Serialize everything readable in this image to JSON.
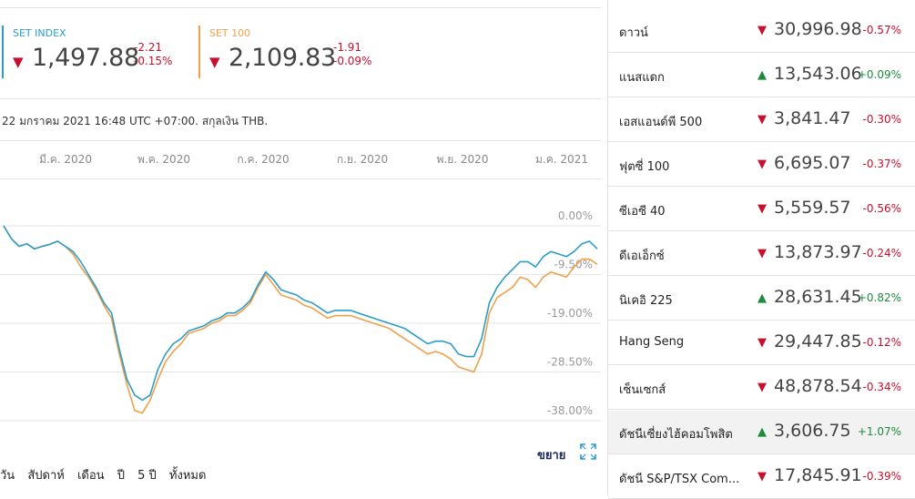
{
  "quotes": [
    {
      "name": "SET INDEX",
      "price": "1,497.88",
      "change": "-2.21",
      "change_pct": "-0.15%",
      "color": "#2a9dc7",
      "direction": "down"
    },
    {
      "name": "SET 100",
      "price": "2,109.83",
      "change": "-1.91",
      "change_pct": "-0.09%",
      "color": "#f0a04b",
      "direction": "down"
    }
  ],
  "timestamp": "22 มกราคม 2021 16:48 UTC +07:00. สกุลเงิน THB.",
  "expand_label": "ขยาย",
  "ranges": [
    "วัน",
    "สัปดาห์",
    "เดือน",
    "ปี",
    "5 ปี",
    "ทั้งหมด"
  ],
  "chart_data": {
    "type": "line",
    "x_ticks": [
      "มี.ค. 2020",
      "พ.ค. 2020",
      "ก.ค. 2020",
      "ก.ย. 2020",
      "พ.ย. 2020",
      "ม.ค. 2021"
    ],
    "y_ticks": [
      "0.00%",
      "-9.50%",
      "-19.00%",
      "-28.50%",
      "-38.00%"
    ],
    "ylim": [
      -38,
      0
    ],
    "y_unit": "% change",
    "grid": true,
    "series": [
      {
        "name": "SET INDEX",
        "color": "#2a9dc7",
        "values": [
          0,
          -2.5,
          -4,
          -3.5,
          -4.5,
          -4,
          -3.6,
          -3,
          -4,
          -5,
          -7,
          -9.5,
          -12,
          -15,
          -17,
          -24,
          -30,
          -33,
          -34,
          -33,
          -28,
          -25,
          -23,
          -22,
          -20.5,
          -20,
          -19.5,
          -18.5,
          -18,
          -17,
          -17,
          -16,
          -14.5,
          -11.5,
          -9,
          -10.5,
          -12.5,
          -13,
          -13.5,
          -14.5,
          -15,
          -16,
          -17,
          -16.5,
          -16.5,
          -16.5,
          -17,
          -17.5,
          -18,
          -18.5,
          -19,
          -19.5,
          -20,
          -21,
          -22,
          -23,
          -22.5,
          -22.5,
          -23,
          -25,
          -25.5,
          -25.5,
          -22,
          -15,
          -12,
          -10,
          -8.5,
          -7,
          -7,
          -8,
          -6,
          -5,
          -5.5,
          -6,
          -5,
          -3.5,
          -3,
          -4.5
        ]
      },
      {
        "name": "SET 100",
        "color": "#f0a04b",
        "values": [
          0,
          -2.5,
          -4,
          -3.5,
          -4.5,
          -4,
          -3.6,
          -3,
          -4,
          -5.5,
          -8,
          -10,
          -12.5,
          -15.5,
          -18,
          -25,
          -31,
          -36,
          -36.5,
          -34,
          -30,
          -26.5,
          -24.5,
          -23,
          -21,
          -20.5,
          -20,
          -19,
          -18.5,
          -17.5,
          -17.5,
          -16.5,
          -15,
          -12,
          -9.5,
          -11.5,
          -13.5,
          -14,
          -14.5,
          -15.5,
          -16,
          -17,
          -18,
          -17.5,
          -17.5,
          -17.5,
          -18,
          -18.5,
          -19,
          -19.5,
          -20,
          -21,
          -22,
          -23,
          -24,
          -25,
          -24.5,
          -25,
          -26,
          -27.5,
          -28,
          -28.5,
          -25,
          -17,
          -14,
          -13,
          -12,
          -10,
          -10.5,
          -12,
          -10,
          -9,
          -9.5,
          -10,
          -8,
          -6.5,
          -6.5,
          -7.5
        ]
      }
    ]
  },
  "indices": [
    {
      "name": "ดาวน์",
      "value": "30,996.98",
      "pct": "-0.57%",
      "dir": "down"
    },
    {
      "name": "แนสแดก",
      "value": "13,543.06",
      "pct": "+0.09%",
      "dir": "up"
    },
    {
      "name": "เอสแอนด์พี 500",
      "value": "3,841.47",
      "pct": "-0.30%",
      "dir": "down"
    },
    {
      "name": "ฟุตซี่ 100",
      "value": "6,695.07",
      "pct": "-0.37%",
      "dir": "down"
    },
    {
      "name": "ซีเอซี 40",
      "value": "5,559.57",
      "pct": "-0.56%",
      "dir": "down"
    },
    {
      "name": "ดีเอเอ็กซ์",
      "value": "13,873.97",
      "pct": "-0.24%",
      "dir": "down"
    },
    {
      "name": "นิเคอิ 225",
      "value": "28,631.45",
      "pct": "+0.82%",
      "dir": "up"
    },
    {
      "name": "Hang Seng",
      "value": "29,447.85",
      "pct": "-0.12%",
      "dir": "down"
    },
    {
      "name": "เซ็นเซกส์",
      "value": "48,878.54",
      "pct": "-0.34%",
      "dir": "down"
    },
    {
      "name": "ดัชนีเซี่ยงไฮ้คอมโพสิต",
      "value": "3,606.75",
      "pct": "+1.07%",
      "dir": "up",
      "highlight": true
    },
    {
      "name": "ดัชนี S&P/TSX Com...",
      "value": "17,845.91",
      "pct": "-0.39%",
      "dir": "down"
    }
  ]
}
